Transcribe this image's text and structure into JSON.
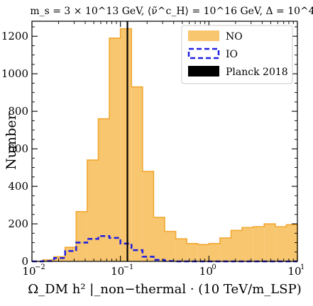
{
  "chart_data": {
    "type": "bar",
    "title": "m_s = 3 × 10^13 GeV, ⟨ν̃^c_H⟩ = 10^16 GeV, Δ = 10^4",
    "xlabel": "Ω_DM h² |_non−thermal · (10 TeV/m_LSP)",
    "ylabel": "Number",
    "x_scale": "log",
    "xlim": [
      0.01,
      10
    ],
    "ylim": [
      0,
      1280
    ],
    "x_ticks": [
      {
        "value": 0.01,
        "base": "10",
        "exp": "−2"
      },
      {
        "value": 0.1,
        "base": "10",
        "exp": "−1"
      },
      {
        "value": 1,
        "base": "10",
        "exp": "0"
      },
      {
        "value": 10,
        "base": "10",
        "exp": "1"
      }
    ],
    "y_ticks": [
      "0",
      "200",
      "400",
      "600",
      "800",
      "1000",
      "1200"
    ],
    "legend_position": "top-right",
    "legend": [
      {
        "label": "NO",
        "style": "filled",
        "color": "#F7C66F"
      },
      {
        "label": "IO",
        "style": "dashed-outline",
        "color": "#1F1FE0"
      },
      {
        "label": "Planck 2018",
        "style": "solid",
        "color": "#000000"
      }
    ],
    "bin_edges_log10": [
      -2.0,
      -1.875,
      -1.75,
      -1.625,
      -1.5,
      -1.375,
      -1.25,
      -1.125,
      -1.0,
      -0.875,
      -0.75,
      -0.625,
      -0.5,
      -0.375,
      -0.25,
      -0.125,
      0.0,
      0.125,
      0.25,
      0.375,
      0.5,
      0.625,
      0.75,
      0.875,
      1.0
    ],
    "series": [
      {
        "name": "NO",
        "values": [
          0,
          8,
          25,
          75,
          265,
          540,
          760,
          1190,
          1240,
          930,
          480,
          235,
          160,
          120,
          95,
          90,
          95,
          125,
          165,
          180,
          185,
          200,
          185,
          195
        ]
      },
      {
        "name": "IO",
        "values": [
          0,
          2,
          18,
          55,
          100,
          120,
          135,
          125,
          95,
          60,
          25,
          8,
          2,
          0,
          0,
          0,
          0,
          0,
          0,
          0,
          0,
          0,
          0,
          0
        ]
      }
    ],
    "vertical_line": {
      "name": "Planck 2018",
      "x": 0.12
    }
  }
}
